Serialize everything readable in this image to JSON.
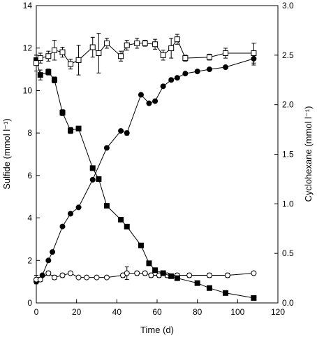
{
  "chart_data": {
    "type": "scatter",
    "title": "",
    "xlabel": "Time (d)",
    "ylabel_left": "Sulfide (mmol l⁻¹)",
    "ylabel_right": "Cyclohexane (mmol l⁻¹)",
    "xlim": [
      0,
      120
    ],
    "ylim_left": [
      0,
      14
    ],
    "ylim_right": [
      0,
      3.0
    ],
    "x_ticks": [
      "0",
      "20",
      "40",
      "60",
      "80",
      "100",
      "120"
    ],
    "y_left_ticks": [
      "0",
      "2",
      "4",
      "6",
      "8",
      "10",
      "12",
      "14"
    ],
    "y_right_ticks": [
      "0.0",
      "0.5",
      "1.0",
      "1.5",
      "2.0",
      "2.5",
      "3.0"
    ],
    "grid": false,
    "legend": "none",
    "series": [
      {
        "axis": "left",
        "marker": "filled-circle",
        "color": "#000000",
        "x": [
          0,
          3,
          6,
          8,
          13,
          17,
          21,
          28,
          35,
          42,
          45,
          52,
          56,
          59,
          63,
          67,
          70,
          74,
          80,
          86,
          94,
          108
        ],
        "y": [
          1.0,
          1.3,
          2.0,
          2.4,
          3.6,
          4.2,
          4.5,
          5.8,
          7.3,
          8.1,
          8.0,
          9.8,
          9.4,
          9.5,
          10.2,
          10.5,
          10.6,
          10.8,
          10.9,
          11.0,
          11.1,
          11.5
        ],
        "err": [
          0.05,
          0.05,
          0.05,
          0.05,
          0.05,
          0.05,
          0.05,
          0.05,
          0.05,
          0.05,
          0.1,
          0.05,
          0.05,
          0.05,
          0.05,
          0.05,
          0.05,
          0.05,
          0.05,
          0.05,
          0.05,
          0.3
        ]
      },
      {
        "axis": "left",
        "marker": "open-circle",
        "color": "#000000",
        "x": [
          0,
          2,
          6,
          9,
          13,
          17,
          21,
          25,
          30,
          35,
          43,
          45,
          50,
          54,
          57,
          61,
          65,
          70,
          76,
          86,
          95,
          108
        ],
        "y": [
          1.1,
          1.1,
          1.4,
          1.2,
          1.3,
          1.4,
          1.2,
          1.2,
          1.2,
          1.2,
          1.3,
          1.4,
          1.4,
          1.4,
          1.3,
          1.3,
          1.3,
          1.3,
          1.3,
          1.3,
          1.3,
          1.4
        ],
        "err": [
          0.2,
          0.1,
          0.1,
          0.1,
          0.1,
          0.05,
          0.05,
          0.05,
          0.05,
          0.05,
          0.1,
          0.3,
          0.1,
          0.1,
          0.1,
          0.1,
          0.1,
          0.1,
          0.1,
          0.1,
          0.1,
          0.05
        ]
      },
      {
        "axis": "right",
        "marker": "filled-square",
        "color": "#000000",
        "x": [
          0,
          2,
          6,
          9,
          13,
          17,
          21,
          28,
          31,
          35,
          42,
          45,
          52,
          56,
          59,
          63,
          67,
          70,
          80,
          86,
          94,
          108
        ],
        "y": [
          2.45,
          2.3,
          2.33,
          2.25,
          1.92,
          1.74,
          1.76,
          1.36,
          1.25,
          0.98,
          0.84,
          0.77,
          0.58,
          0.4,
          0.33,
          0.3,
          0.27,
          0.25,
          0.2,
          0.15,
          0.1,
          0.05
        ],
        "err": [
          0.05,
          0.05,
          0.03,
          0.03,
          0.03,
          0.03,
          0.02,
          0.02,
          0.02,
          0.02,
          0.02,
          0.02,
          0.02,
          0.02,
          0.02,
          0.02,
          0.02,
          0.02,
          0.02,
          0.02,
          0.02,
          0.02
        ]
      },
      {
        "axis": "right",
        "marker": "open-square",
        "color": "#000000",
        "x": [
          0,
          2,
          6,
          9,
          13,
          17,
          21,
          28,
          31,
          35,
          42,
          45,
          50,
          54,
          59,
          63,
          67,
          70,
          74,
          86,
          94,
          108
        ],
        "y": [
          2.42,
          2.47,
          2.49,
          2.55,
          2.53,
          2.41,
          2.45,
          2.58,
          2.52,
          2.62,
          2.49,
          2.6,
          2.62,
          2.62,
          2.61,
          2.5,
          2.57,
          2.66,
          2.47,
          2.48,
          2.52,
          2.52
        ],
        "err": [
          0.08,
          0.05,
          0.05,
          0.1,
          0.05,
          0.05,
          0.15,
          0.1,
          0.2,
          0.05,
          0.05,
          0.05,
          0.05,
          0.03,
          0.05,
          0.05,
          0.1,
          0.05,
          0.03,
          0.03,
          0.05,
          0.1
        ]
      }
    ]
  }
}
